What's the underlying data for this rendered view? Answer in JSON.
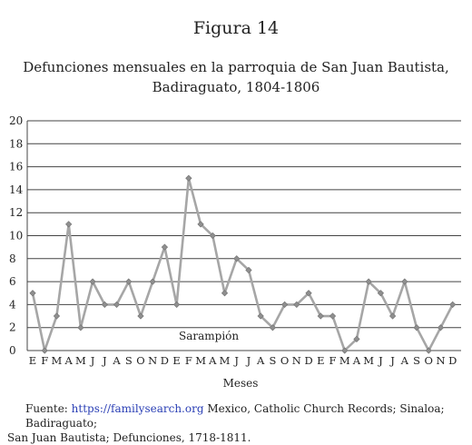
{
  "figure_label": "Figura 14",
  "chart_data": {
    "type": "line",
    "title_line1": "Defunciones mensuales en la parroquia de San Juan Bautista,",
    "title_line2": "Badiraguato, 1804-1806",
    "xlabel": "Meses",
    "ylabel": "",
    "ylim": [
      0,
      20
    ],
    "yticks": [
      "0",
      "2",
      "4",
      "6",
      "8",
      "10",
      "12",
      "14",
      "16",
      "18",
      "20"
    ],
    "grid": true,
    "categories": [
      "E",
      "F",
      "M",
      "A",
      "M",
      "J",
      "J",
      "A",
      "S",
      "O",
      "N",
      "D",
      "E",
      "F",
      "M",
      "A",
      "M",
      "J",
      "J",
      "A",
      "S",
      "O",
      "N",
      "D",
      "E",
      "F",
      "M",
      "A",
      "M",
      "J",
      "J",
      "A",
      "S",
      "O",
      "N",
      "D"
    ],
    "values": [
      5,
      0,
      3,
      11,
      2,
      6,
      4,
      4,
      6,
      3,
      6,
      9,
      4,
      15,
      11,
      10,
      5,
      8,
      7,
      3,
      2,
      4,
      4,
      5,
      3,
      3,
      0,
      1,
      6,
      5,
      3,
      6,
      2,
      0,
      2,
      4
    ],
    "line_color": "#a6a6a6",
    "marker_color": "#8f8f8f",
    "annotation": "Sarampión"
  },
  "source": {
    "prefix": "Fuente: ",
    "link": "https://familysearch.org",
    "rest": " Mexico, Catholic Church Records; Sinaloa; Badiraguato;",
    "line2": "San Juan Bautista; Defunciones, 1718-1811."
  }
}
